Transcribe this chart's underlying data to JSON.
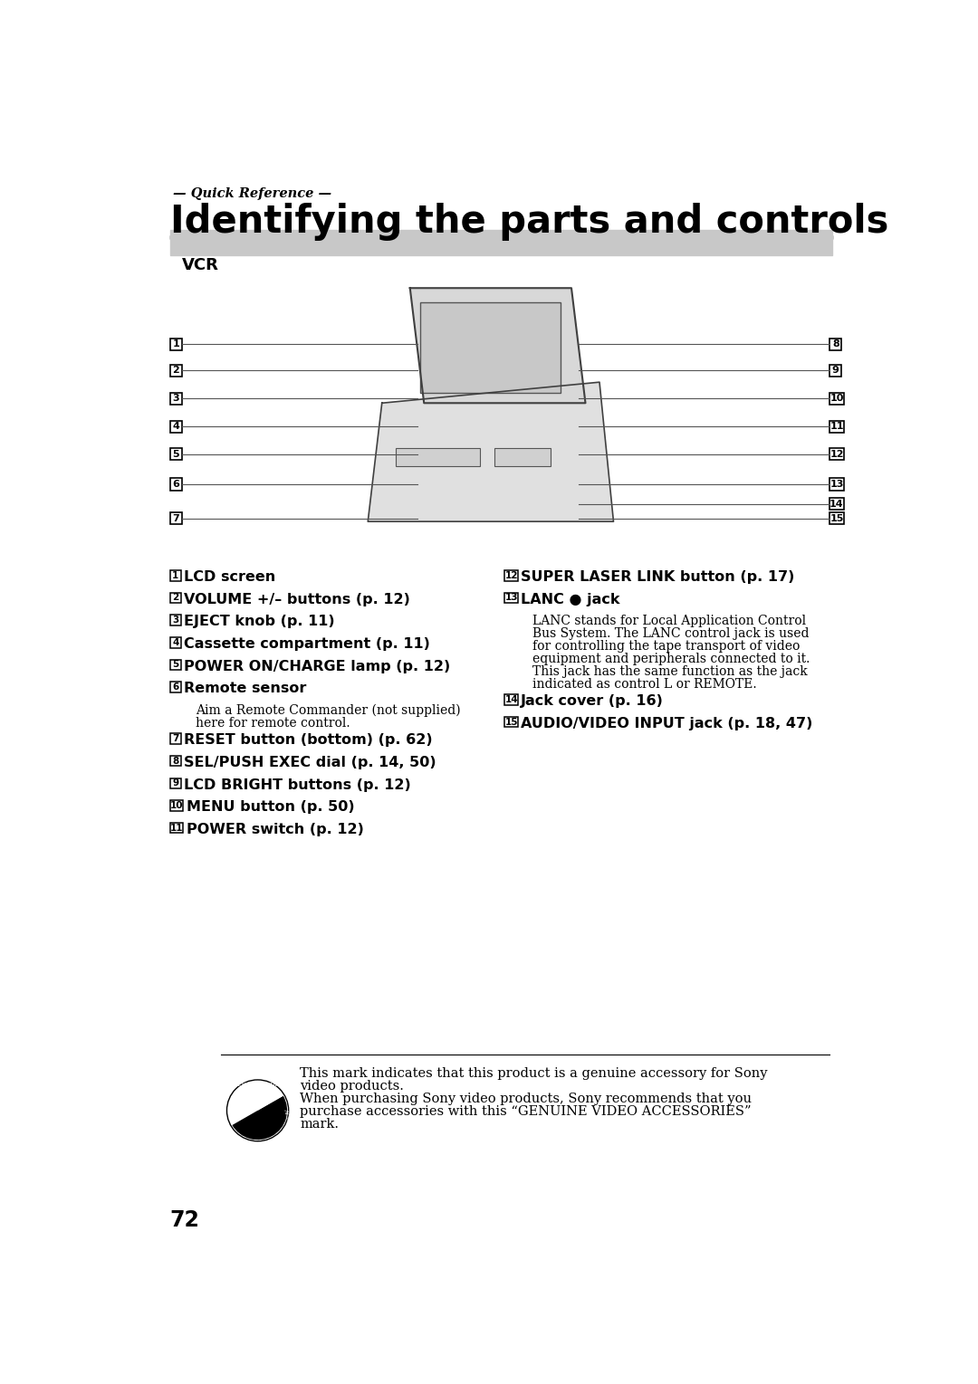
{
  "page_number": "72",
  "quick_ref": "— Quick Reference —",
  "title": "Identifying the parts and controls",
  "section": "VCR",
  "background": "#ffffff",
  "vcr_bar_color": "#c8c8c8",
  "footer_lines": [
    "This mark indicates that this product is a genuine accessory for Sony",
    "video products.",
    "When purchasing Sony video products, Sony recommends that you",
    "purchase accessories with this “GENUINE VIDEO ACCESSORIES”",
    "mark."
  ],
  "left_nums_y": [
    247,
    285,
    325,
    365,
    405,
    448,
    497
  ],
  "left_nums": [
    "1",
    "2",
    "3",
    "4",
    "5",
    "6",
    "7"
  ],
  "right_nums_y": [
    247,
    285,
    325,
    365,
    405,
    448,
    476,
    497
  ],
  "right_nums": [
    "8",
    "9",
    "10",
    "11",
    "12",
    "13",
    "14",
    "15"
  ],
  "items_left": [
    {
      "num": "1",
      "bold": "LCD screen",
      "normal": "",
      "sub": ""
    },
    {
      "num": "2",
      "bold": "VOLUME +/– buttons (p. 12)",
      "normal": "",
      "sub": ""
    },
    {
      "num": "3",
      "bold": "EJECT knob (p. 11)",
      "normal": "",
      "sub": ""
    },
    {
      "num": "4",
      "bold": "Cassette compartment (p. 11)",
      "normal": "",
      "sub": ""
    },
    {
      "num": "5",
      "bold": "POWER ON/CHARGE lamp (p. 12)",
      "normal": "",
      "sub": ""
    },
    {
      "num": "6",
      "bold": "Remote sensor",
      "normal": "",
      "sub": "Aim a Remote Commander (not supplied)\nhere for remote control."
    },
    {
      "num": "7",
      "bold": "RESET button (bottom) (p. 62)",
      "normal": "",
      "sub": ""
    },
    {
      "num": "8",
      "bold": "SEL/PUSH EXEC dial (p. 14, 50)",
      "normal": "",
      "sub": ""
    },
    {
      "num": "9",
      "bold": "LCD BRIGHT buttons (p. 12)",
      "normal": "",
      "sub": ""
    },
    {
      "num": "10",
      "bold": "MENU button (p. 50)",
      "normal": "",
      "sub": ""
    },
    {
      "num": "11",
      "bold": "POWER switch (p. 12)",
      "normal": "",
      "sub": ""
    }
  ],
  "items_right": [
    {
      "num": "12",
      "bold": "SUPER LASER LINK button (p. 17)",
      "normal": "",
      "sub": ""
    },
    {
      "num": "13",
      "bold": "LANC ● jack",
      "normal": "",
      "sub": "LANC stands for Local Application Control\nBus System. The LANC control jack is used\nfor controlling the tape transport of video\nequipment and peripherals connected to it.\nThis jack has the same function as the jack\nindicated as control L or REMOTE."
    },
    {
      "num": "14",
      "bold": "Jack cover (p. 16)",
      "normal": "",
      "sub": ""
    },
    {
      "num": "15",
      "bold": "AUDIO/VIDEO INPUT jack (p. 18, 47)",
      "normal": "",
      "sub": ""
    }
  ]
}
